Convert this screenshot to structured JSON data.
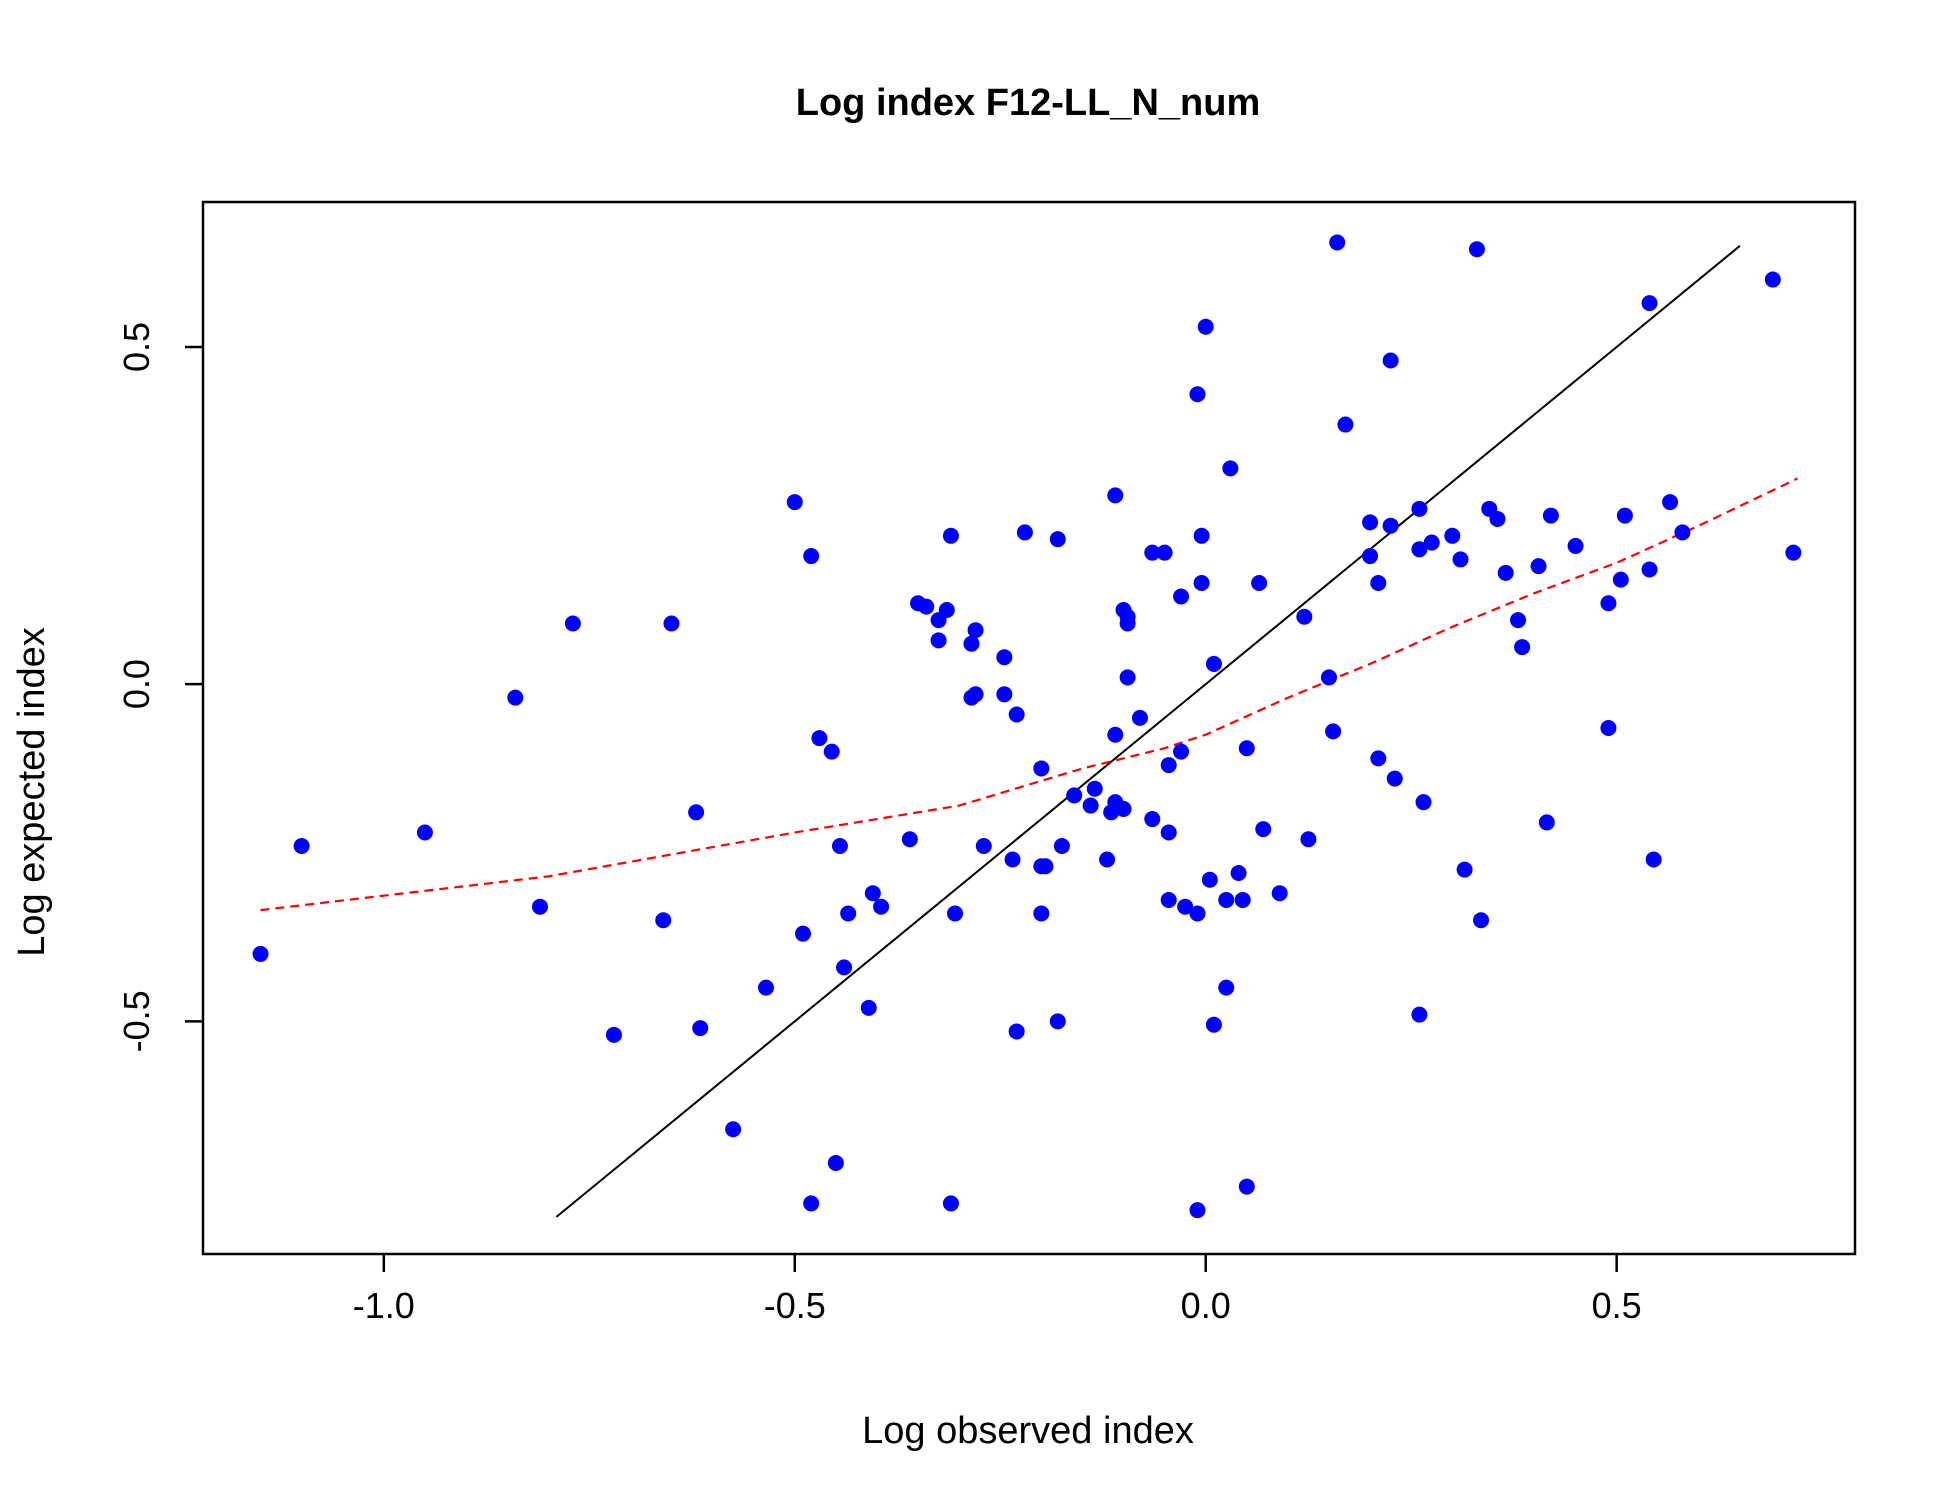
{
  "chart_data": {
    "type": "scatter",
    "title": "Log index F12-LL_N_num",
    "xlabel": "Log observed index",
    "ylabel": "Log expected index",
    "xlim": [
      -1.22,
      0.79
    ],
    "ylim": [
      -0.845,
      0.715
    ],
    "x_ticks": [
      -1.0,
      -0.5,
      0.0,
      0.5
    ],
    "x_tick_labels": [
      "-1.0",
      "-0.5",
      "0.0",
      "0.5"
    ],
    "y_ticks": [
      -0.5,
      0.0,
      0.5
    ],
    "y_tick_labels": [
      "-0.5",
      "0.0",
      "0.5"
    ],
    "grid": false,
    "legend": "none",
    "colors": {
      "points": "#0000ff",
      "identity_line": "#000000",
      "smoother": "#ff0000"
    },
    "identity_line": {
      "x": [
        -0.79,
        0.65
      ],
      "y": [
        -0.79,
        0.65
      ]
    },
    "smoother": {
      "x": [
        -1.15,
        -0.8,
        -0.5,
        -0.3,
        -0.15,
        -0.05,
        0.0,
        0.1,
        0.2,
        0.3,
        0.4,
        0.5,
        0.6,
        0.72
      ],
      "y": [
        -0.335,
        -0.285,
        -0.22,
        -0.18,
        -0.125,
        -0.095,
        -0.075,
        -0.02,
        0.03,
        0.085,
        0.135,
        0.18,
        0.235,
        0.305
      ]
    },
    "points": [
      [
        -1.15,
        -0.4
      ],
      [
        -1.1,
        -0.24
      ],
      [
        -0.95,
        -0.22
      ],
      [
        -0.84,
        -0.02
      ],
      [
        -0.81,
        -0.33
      ],
      [
        -0.77,
        0.09
      ],
      [
        -0.72,
        -0.52
      ],
      [
        -0.66,
        -0.35
      ],
      [
        -0.65,
        0.09
      ],
      [
        -0.62,
        -0.19
      ],
      [
        -0.615,
        -0.51
      ],
      [
        -0.575,
        -0.66
      ],
      [
        -0.535,
        -0.45
      ],
      [
        -0.5,
        0.27
      ],
      [
        -0.49,
        -0.37
      ],
      [
        -0.48,
        0.19
      ],
      [
        -0.48,
        -0.77
      ],
      [
        -0.47,
        -0.08
      ],
      [
        -0.455,
        -0.1
      ],
      [
        -0.45,
        -0.71
      ],
      [
        -0.445,
        -0.24
      ],
      [
        -0.44,
        -0.42
      ],
      [
        -0.435,
        -0.34
      ],
      [
        -0.41,
        -0.48
      ],
      [
        -0.405,
        -0.31
      ],
      [
        -0.395,
        -0.33
      ],
      [
        -0.36,
        -0.23
      ],
      [
        -0.35,
        0.12
      ],
      [
        -0.34,
        0.115
      ],
      [
        -0.325,
        0.065
      ],
      [
        -0.325,
        0.095
      ],
      [
        -0.315,
        0.11
      ],
      [
        -0.31,
        0.22
      ],
      [
        -0.31,
        -0.77
      ],
      [
        -0.305,
        -0.34
      ],
      [
        -0.285,
        0.06
      ],
      [
        -0.285,
        -0.02
      ],
      [
        -0.28,
        -0.015
      ],
      [
        -0.28,
        0.08
      ],
      [
        -0.27,
        -0.24
      ],
      [
        -0.245,
        0.04
      ],
      [
        -0.245,
        -0.015
      ],
      [
        -0.235,
        -0.26
      ],
      [
        -0.23,
        -0.515
      ],
      [
        -0.23,
        -0.045
      ],
      [
        -0.22,
        0.225
      ],
      [
        -0.2,
        -0.125
      ],
      [
        -0.2,
        -0.34
      ],
      [
        -0.2,
        -0.27
      ],
      [
        -0.195,
        -0.27
      ],
      [
        -0.18,
        0.215
      ],
      [
        -0.18,
        -0.5
      ],
      [
        -0.175,
        -0.24
      ],
      [
        -0.16,
        -0.165
      ],
      [
        -0.14,
        -0.18
      ],
      [
        -0.135,
        -0.155
      ],
      [
        -0.12,
        -0.26
      ],
      [
        -0.115,
        -0.19
      ],
      [
        -0.11,
        0.28
      ],
      [
        -0.11,
        -0.175
      ],
      [
        -0.11,
        -0.075
      ],
      [
        -0.1,
        0.11
      ],
      [
        -0.1,
        -0.185
      ],
      [
        -0.095,
        0.1
      ],
      [
        -0.095,
        0.09
      ],
      [
        -0.095,
        0.01
      ],
      [
        -0.08,
        -0.05
      ],
      [
        -0.065,
        0.195
      ],
      [
        -0.065,
        -0.2
      ],
      [
        -0.05,
        0.195
      ],
      [
        -0.045,
        -0.22
      ],
      [
        -0.045,
        -0.32
      ],
      [
        -0.045,
        -0.12
      ],
      [
        -0.03,
        0.13
      ],
      [
        -0.03,
        -0.1
      ],
      [
        -0.025,
        -0.33
      ],
      [
        -0.01,
        0.43
      ],
      [
        -0.01,
        -0.34
      ],
      [
        -0.01,
        -0.78
      ],
      [
        -0.005,
        0.22
      ],
      [
        -0.005,
        0.15
      ],
      [
        0.0,
        0.53
      ],
      [
        0.005,
        -0.29
      ],
      [
        0.01,
        0.03
      ],
      [
        0.01,
        -0.505
      ],
      [
        0.025,
        -0.32
      ],
      [
        0.025,
        -0.45
      ],
      [
        0.03,
        0.32
      ],
      [
        0.04,
        -0.28
      ],
      [
        0.045,
        -0.32
      ],
      [
        0.05,
        -0.095
      ],
      [
        0.05,
        -0.745
      ],
      [
        0.065,
        0.15
      ],
      [
        0.07,
        -0.215
      ],
      [
        0.09,
        -0.31
      ],
      [
        0.12,
        0.1
      ],
      [
        0.125,
        -0.23
      ],
      [
        0.15,
        0.01
      ],
      [
        0.155,
        -0.07
      ],
      [
        0.16,
        0.655
      ],
      [
        0.17,
        0.385
      ],
      [
        0.2,
        0.24
      ],
      [
        0.2,
        0.19
      ],
      [
        0.21,
        0.15
      ],
      [
        0.21,
        -0.11
      ],
      [
        0.225,
        0.48
      ],
      [
        0.225,
        0.235
      ],
      [
        0.23,
        -0.14
      ],
      [
        0.26,
        0.26
      ],
      [
        0.26,
        0.2
      ],
      [
        0.26,
        -0.49
      ],
      [
        0.265,
        -0.175
      ],
      [
        0.275,
        0.21
      ],
      [
        0.3,
        0.22
      ],
      [
        0.31,
        0.185
      ],
      [
        0.315,
        -0.275
      ],
      [
        0.33,
        0.645
      ],
      [
        0.335,
        -0.35
      ],
      [
        0.345,
        0.26
      ],
      [
        0.355,
        0.245
      ],
      [
        0.365,
        0.165
      ],
      [
        0.38,
        0.095
      ],
      [
        0.385,
        0.055
      ],
      [
        0.405,
        0.175
      ],
      [
        0.415,
        -0.205
      ],
      [
        0.42,
        0.25
      ],
      [
        0.45,
        0.205
      ],
      [
        0.49,
        0.12
      ],
      [
        0.49,
        -0.065
      ],
      [
        0.505,
        0.155
      ],
      [
        0.51,
        0.25
      ],
      [
        0.54,
        0.17
      ],
      [
        0.54,
        0.565
      ],
      [
        0.545,
        -0.26
      ],
      [
        0.565,
        0.27
      ],
      [
        0.58,
        0.225
      ],
      [
        0.69,
        0.6
      ],
      [
        0.715,
        0.195
      ]
    ]
  }
}
